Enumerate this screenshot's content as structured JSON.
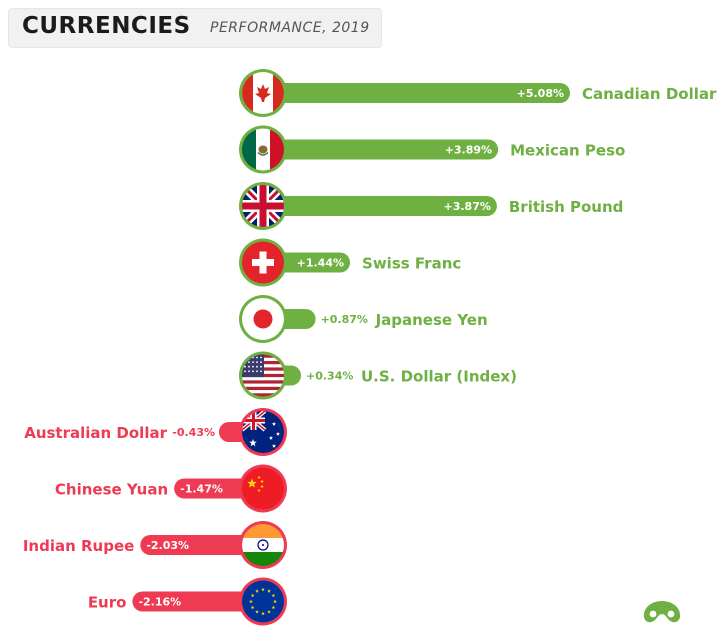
{
  "header": {
    "title": "CURRENCIES",
    "subtitle": "PERFORMANCE, 2019"
  },
  "colors": {
    "positive": "#6eb041",
    "negative": "#ee3a53",
    "title_text": "#1b1b1b",
    "subtitle_text": "#555555",
    "header_bg": "#f1f1f1",
    "logo": "#6eb041"
  },
  "logo_icon": "visual-capitalist-logo-icon",
  "chart_data": {
    "type": "bar",
    "orientation": "horizontal",
    "title": "CURRENCIES",
    "subtitle": "PERFORMANCE, 2019",
    "series": [
      {
        "name": "",
        "values": [
          5.08,
          3.89,
          3.87,
          1.44,
          0.87,
          0.34,
          -0.43,
          -1.47,
          -2.03,
          -2.16
        ],
        "value_labels": [
          "+5.08%",
          "+3.89%",
          "+3.87%",
          "+1.44%",
          "+0.87%",
          "+0.34%",
          "-0.43%",
          "-1.47%",
          "-2.03%",
          "-2.16%"
        ]
      }
    ],
    "categories": [
      "Canadian Dollar",
      "Mexican Peso",
      "British Pound",
      "Swiss Franc",
      "Japanese Yen",
      "U.S. Dollar (Index)",
      "Australian Dollar",
      "Chinese Yuan",
      "Indian Rupee",
      "Euro"
    ],
    "flag_icons": [
      "canada-flag-icon",
      "mexico-flag-icon",
      "uk-flag-icon",
      "switzerland-flag-icon",
      "japan-flag-icon",
      "usa-flag-icon",
      "australia-flag-icon",
      "china-flag-icon",
      "india-flag-icon",
      "eu-flag-icon"
    ],
    "xlim": [
      -2.16,
      5.08
    ],
    "grid": false,
    "legend": "none"
  }
}
